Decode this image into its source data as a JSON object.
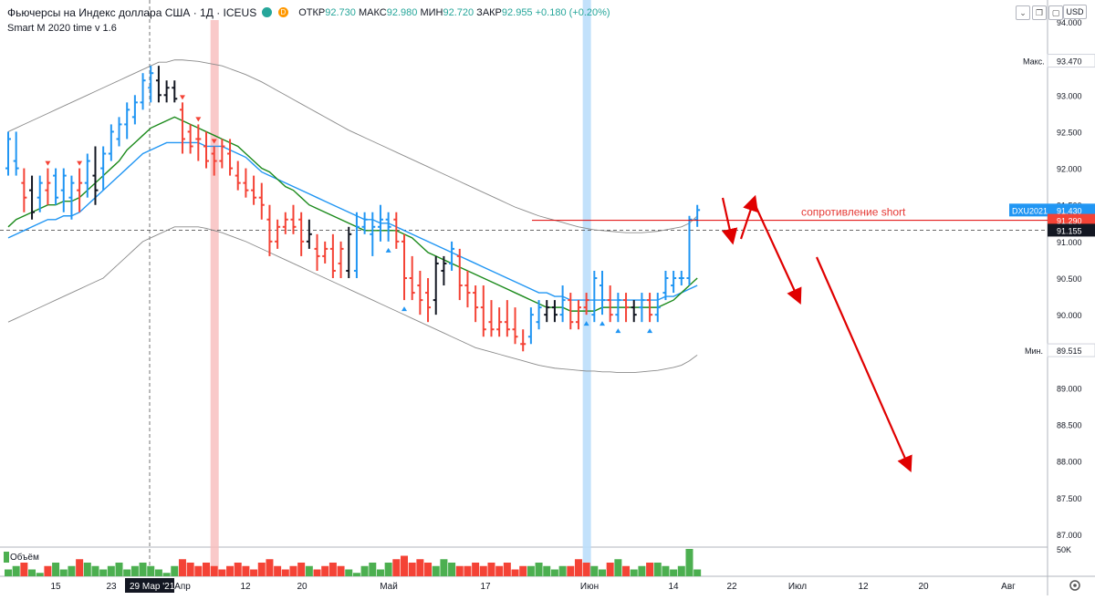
{
  "header": {
    "title": "Фьючерсы на Индекс доллара США · 1Д · ICEUS",
    "open_label": "ОТКР",
    "open": "92.730",
    "high_label": "МАКС",
    "high": "92.980",
    "low_label": "МИН",
    "low": "92.720",
    "close_label": "ЗАКР",
    "close": "92.955",
    "change": "+0.180 (+0.20%)",
    "indicator": "Smart M 2020 time v 1.6",
    "currency": "USD",
    "badge_d": "D"
  },
  "price_axis": {
    "ticks": [
      "94.000",
      "93.500",
      "93.000",
      "92.500",
      "92.000",
      "91.500",
      "91.000",
      "90.500",
      "90.000",
      "89.500",
      "89.000",
      "88.500",
      "88.000",
      "87.500",
      "87.000"
    ],
    "tick_values": [
      94.0,
      93.5,
      93.0,
      92.5,
      92.0,
      91.5,
      91.0,
      90.5,
      90.0,
      89.5,
      89.0,
      88.5,
      88.0,
      87.5,
      87.0
    ],
    "max_label": "Макс.",
    "max_value": "93.470",
    "min_label": "Мин.",
    "min_value": "89.515",
    "symbol_label": "DXU2021",
    "symbol_value": "91.430",
    "resistance_value": "91.290",
    "last_value": "91.155"
  },
  "time_axis": {
    "labels": [
      "15",
      "23",
      "29 Мар '21",
      "Апр",
      "12",
      "20",
      "Май",
      "17",
      "Июн",
      "14",
      "22",
      "Июл",
      "12",
      "20",
      "Авг"
    ],
    "cursor_label": "29 Мар '21"
  },
  "volume": {
    "label": "Объём",
    "axis_label": "50K"
  },
  "annotations": {
    "resistance_text": "сопротивление short"
  },
  "colors": {
    "up": "#2196f3",
    "down": "#f44336",
    "neutral": "#131722",
    "ema_green": "#1b8a1b",
    "ema_blue": "#2196f3",
    "band": "#8a8a8a",
    "vol_up": "#4caf50",
    "vol_down": "#f44336",
    "arrow": "#e00000"
  },
  "chart_data": {
    "type": "ohlc",
    "symbol": "DXU2021",
    "timeframe": "1D",
    "ylim": [
      86.8,
      94.2
    ],
    "bars": [
      [
        92.0,
        92.5,
        91.9,
        92.4,
        "up"
      ],
      [
        92.1,
        92.5,
        91.9,
        92.0,
        "up"
      ],
      [
        91.8,
        92.0,
        91.4,
        91.6,
        "down"
      ],
      [
        91.7,
        91.9,
        91.3,
        91.4,
        "neutral"
      ],
      [
        91.6,
        91.9,
        91.4,
        91.8,
        "up"
      ],
      [
        91.7,
        92.0,
        91.5,
        91.8,
        "down"
      ],
      [
        91.9,
        92.0,
        91.5,
        91.6,
        "up"
      ],
      [
        91.7,
        92.0,
        91.4,
        91.9,
        "up"
      ],
      [
        91.6,
        91.9,
        91.3,
        91.8,
        "up"
      ],
      [
        91.7,
        92.0,
        91.4,
        91.8,
        "down"
      ],
      [
        91.8,
        92.2,
        91.6,
        92.1,
        "up"
      ],
      [
        91.9,
        92.3,
        91.5,
        91.7,
        "neutral"
      ],
      [
        92.0,
        92.3,
        91.7,
        92.2,
        "up"
      ],
      [
        92.2,
        92.6,
        92.1,
        92.5,
        "up"
      ],
      [
        92.4,
        92.7,
        92.3,
        92.6,
        "up"
      ],
      [
        92.6,
        92.9,
        92.4,
        92.8,
        "up"
      ],
      [
        92.7,
        93.0,
        92.6,
        92.9,
        "up"
      ],
      [
        92.9,
        93.3,
        92.8,
        93.2,
        "up"
      ],
      [
        93.1,
        93.4,
        92.9,
        93.3,
        "up"
      ],
      [
        93.2,
        93.4,
        92.9,
        93.0,
        "neutral"
      ],
      [
        93.0,
        93.2,
        92.9,
        93.1,
        "neutral"
      ],
      [
        93.1,
        93.2,
        92.9,
        92.95,
        "neutral"
      ],
      [
        92.8,
        92.9,
        92.2,
        92.4,
        "down"
      ],
      [
        92.5,
        92.6,
        92.2,
        92.3,
        "down"
      ],
      [
        92.4,
        92.6,
        92.1,
        92.4,
        "down"
      ],
      [
        92.3,
        92.5,
        92.0,
        92.1,
        "down"
      ],
      [
        92.2,
        92.3,
        91.9,
        92.1,
        "down"
      ],
      [
        92.1,
        92.4,
        92.0,
        92.3,
        "down"
      ],
      [
        92.2,
        92.4,
        91.9,
        92.0,
        "down"
      ],
      [
        91.9,
        92.1,
        91.7,
        91.8,
        "down"
      ],
      [
        91.8,
        92.0,
        91.6,
        91.7,
        "down"
      ],
      [
        91.7,
        91.9,
        91.5,
        91.6,
        "down"
      ],
      [
        91.6,
        91.8,
        91.3,
        91.5,
        "down"
      ],
      [
        91.3,
        91.5,
        90.8,
        91.0,
        "down"
      ],
      [
        91.0,
        91.3,
        90.9,
        91.2,
        "down"
      ],
      [
        91.2,
        91.4,
        91.1,
        91.3,
        "down"
      ],
      [
        91.3,
        91.5,
        91.1,
        91.2,
        "down"
      ],
      [
        91.3,
        91.4,
        90.8,
        91.0,
        "down"
      ],
      [
        91.0,
        91.3,
        90.9,
        91.1,
        "neutral"
      ],
      [
        90.9,
        91.1,
        90.6,
        90.8,
        "down"
      ],
      [
        90.8,
        91.0,
        90.7,
        90.9,
        "down"
      ],
      [
        90.9,
        91.1,
        90.5,
        90.6,
        "down"
      ],
      [
        90.7,
        91.0,
        90.5,
        90.9,
        "down"
      ],
      [
        90.6,
        91.2,
        90.5,
        91.1,
        "neutral"
      ],
      [
        90.6,
        91.4,
        90.5,
        91.2,
        "up"
      ],
      [
        91.2,
        91.4,
        91.1,
        91.3,
        "up"
      ],
      [
        91.1,
        91.4,
        90.8,
        91.2,
        "up"
      ],
      [
        91.2,
        91.5,
        91.0,
        91.3,
        "up"
      ],
      [
        91.3,
        91.4,
        91.0,
        91.2,
        "up"
      ],
      [
        91.3,
        91.4,
        90.9,
        91.0,
        "down"
      ],
      [
        91.0,
        91.1,
        90.2,
        90.5,
        "down"
      ],
      [
        90.5,
        90.8,
        90.2,
        90.3,
        "down"
      ],
      [
        90.4,
        90.6,
        90.0,
        90.2,
        "down"
      ],
      [
        90.3,
        90.5,
        89.9,
        90.1,
        "down"
      ],
      [
        90.2,
        90.8,
        90.0,
        90.7,
        "neutral"
      ],
      [
        90.6,
        90.8,
        90.4,
        90.7,
        "neutral"
      ],
      [
        90.7,
        91.0,
        90.6,
        90.9,
        "up"
      ],
      [
        90.8,
        90.9,
        90.2,
        90.4,
        "down"
      ],
      [
        90.4,
        90.6,
        90.1,
        90.3,
        "down"
      ],
      [
        90.3,
        90.4,
        89.9,
        90.1,
        "down"
      ],
      [
        90.1,
        90.4,
        89.7,
        89.8,
        "down"
      ],
      [
        89.9,
        90.2,
        89.7,
        89.8,
        "down"
      ],
      [
        89.8,
        90.1,
        89.7,
        89.9,
        "down"
      ],
      [
        89.9,
        90.2,
        89.7,
        89.8,
        "down"
      ],
      [
        89.8,
        90.1,
        89.6,
        89.7,
        "down"
      ],
      [
        89.6,
        89.8,
        89.5,
        89.6,
        "down"
      ],
      [
        89.7,
        90.1,
        89.6,
        90.0,
        "up"
      ],
      [
        89.9,
        90.2,
        89.8,
        90.1,
        "up"
      ],
      [
        90.0,
        90.2,
        89.9,
        90.1,
        "neutral"
      ],
      [
        90.1,
        90.2,
        89.9,
        90.0,
        "neutral"
      ],
      [
        90.0,
        90.4,
        89.9,
        90.2,
        "up"
      ],
      [
        90.2,
        90.3,
        89.8,
        89.9,
        "down"
      ],
      [
        89.9,
        90.2,
        89.8,
        90.1,
        "down"
      ],
      [
        90.1,
        90.3,
        90.0,
        90.2,
        "down"
      ],
      [
        90.0,
        90.6,
        89.9,
        90.5,
        "up"
      ],
      [
        90.4,
        90.6,
        90.0,
        90.2,
        "up"
      ],
      [
        90.2,
        90.4,
        89.9,
        90.0,
        "down"
      ],
      [
        90.0,
        90.3,
        89.9,
        90.2,
        "up"
      ],
      [
        90.2,
        90.3,
        89.9,
        90.1,
        "down"
      ],
      [
        90.1,
        90.2,
        89.9,
        90.0,
        "neutral"
      ],
      [
        90.1,
        90.3,
        89.9,
        90.2,
        "up"
      ],
      [
        90.2,
        90.3,
        89.9,
        90.0,
        "down"
      ],
      [
        90.0,
        90.3,
        89.9,
        90.1,
        "up"
      ],
      [
        90.3,
        90.6,
        90.2,
        90.5,
        "up"
      ],
      [
        90.4,
        90.6,
        90.3,
        90.5,
        "up"
      ],
      [
        90.5,
        90.6,
        90.4,
        90.5,
        "up"
      ],
      [
        90.5,
        91.35,
        90.4,
        91.3,
        "up"
      ],
      [
        91.3,
        91.5,
        91.2,
        91.43,
        "up"
      ]
    ],
    "ema_green": [
      91.2,
      91.3,
      91.35,
      91.4,
      91.45,
      91.5,
      91.5,
      91.55,
      91.55,
      91.6,
      91.7,
      91.8,
      91.9,
      92.0,
      92.1,
      92.25,
      92.35,
      92.45,
      92.55,
      92.6,
      92.65,
      92.7,
      92.65,
      92.6,
      92.55,
      92.5,
      92.45,
      92.4,
      92.35,
      92.3,
      92.2,
      92.1,
      92.0,
      91.95,
      91.85,
      91.75,
      91.7,
      91.6,
      91.5,
      91.45,
      91.4,
      91.35,
      91.3,
      91.25,
      91.2,
      91.15,
      91.15,
      91.15,
      91.15,
      91.15,
      91.1,
      91.05,
      90.95,
      90.85,
      90.8,
      90.75,
      90.7,
      90.65,
      90.6,
      90.55,
      90.5,
      90.45,
      90.4,
      90.35,
      90.3,
      90.25,
      90.2,
      90.15,
      90.1,
      90.1,
      90.1,
      90.05,
      90.05,
      90.05,
      90.05,
      90.1,
      90.1,
      90.1,
      90.1,
      90.1,
      90.1,
      90.1,
      90.1,
      90.15,
      90.2,
      90.3,
      90.4,
      90.5
    ],
    "ema_blue": [
      91.05,
      91.1,
      91.15,
      91.2,
      91.25,
      91.3,
      91.3,
      91.35,
      91.35,
      91.4,
      91.5,
      91.6,
      91.7,
      91.8,
      91.9,
      92.0,
      92.1,
      92.2,
      92.25,
      92.3,
      92.35,
      92.35,
      92.35,
      92.35,
      92.35,
      92.3,
      92.3,
      92.3,
      92.25,
      92.2,
      92.15,
      92.05,
      91.95,
      91.9,
      91.85,
      91.8,
      91.75,
      91.7,
      91.65,
      91.6,
      91.55,
      91.5,
      91.45,
      91.4,
      91.35,
      91.3,
      91.3,
      91.25,
      91.25,
      91.2,
      91.15,
      91.1,
      91.05,
      91.0,
      90.95,
      90.9,
      90.85,
      90.8,
      90.75,
      90.7,
      90.65,
      90.6,
      90.55,
      90.5,
      90.45,
      90.4,
      90.35,
      90.3,
      90.3,
      90.25,
      90.25,
      90.2,
      90.2,
      90.2,
      90.2,
      90.2,
      90.2,
      90.2,
      90.2,
      90.2,
      90.2,
      90.2,
      90.2,
      90.25,
      90.25,
      90.3,
      90.35,
      90.4
    ],
    "band_upper": [
      92.5,
      92.55,
      92.6,
      92.65,
      92.7,
      92.75,
      92.8,
      92.85,
      92.9,
      92.95,
      93.0,
      93.05,
      93.1,
      93.15,
      93.2,
      93.25,
      93.3,
      93.35,
      93.4,
      93.45,
      93.45,
      93.48,
      93.48,
      93.47,
      93.46,
      93.44,
      93.42,
      93.4,
      93.36,
      93.32,
      93.28,
      93.23,
      93.18,
      93.12,
      93.06,
      93.0,
      92.94,
      92.88,
      92.82,
      92.76,
      92.7,
      92.64,
      92.58,
      92.52,
      92.47,
      92.42,
      92.37,
      92.32,
      92.27,
      92.22,
      92.17,
      92.12,
      92.07,
      92.02,
      91.97,
      91.92,
      91.87,
      91.82,
      91.77,
      91.72,
      91.67,
      91.62,
      91.57,
      91.52,
      91.47,
      91.43,
      91.39,
      91.35,
      91.32,
      91.29,
      91.26,
      91.23,
      91.2,
      91.18,
      91.16,
      91.15,
      91.14,
      91.13,
      91.12,
      91.12,
      91.12,
      91.13,
      91.14,
      91.16,
      91.18,
      91.2,
      91.25,
      91.35
    ],
    "band_lower": [
      89.9,
      89.95,
      90.0,
      90.05,
      90.1,
      90.15,
      90.2,
      90.25,
      90.3,
      90.35,
      90.4,
      90.45,
      90.5,
      90.6,
      90.7,
      90.8,
      90.9,
      91.0,
      91.05,
      91.1,
      91.15,
      91.2,
      91.2,
      91.2,
      91.2,
      91.18,
      91.15,
      91.12,
      91.08,
      91.04,
      91.0,
      90.95,
      90.9,
      90.85,
      90.8,
      90.75,
      90.7,
      90.65,
      90.6,
      90.55,
      90.5,
      90.45,
      90.4,
      90.35,
      90.3,
      90.25,
      90.2,
      90.15,
      90.1,
      90.05,
      90.0,
      89.95,
      89.9,
      89.85,
      89.8,
      89.75,
      89.7,
      89.65,
      89.6,
      89.55,
      89.52,
      89.49,
      89.46,
      89.43,
      89.4,
      89.37,
      89.34,
      89.31,
      89.29,
      89.27,
      89.26,
      89.25,
      89.24,
      89.23,
      89.23,
      89.22,
      89.22,
      89.21,
      89.21,
      89.21,
      89.22,
      89.23,
      89.24,
      89.26,
      89.28,
      89.31,
      89.37,
      89.45
    ],
    "volume": [
      2,
      3,
      4,
      2,
      1,
      3,
      4,
      2,
      3,
      5,
      4,
      3,
      2,
      3,
      4,
      2,
      3,
      4,
      3,
      2,
      1,
      3,
      5,
      4,
      3,
      4,
      3,
      2,
      3,
      4,
      3,
      2,
      4,
      5,
      3,
      2,
      3,
      4,
      3,
      2,
      3,
      4,
      3,
      2,
      1,
      3,
      4,
      2,
      4,
      5,
      6,
      4,
      5,
      4,
      3,
      5,
      4,
      3,
      3,
      4,
      3,
      4,
      3,
      4,
      2,
      3,
      3,
      4,
      3,
      2,
      3,
      3,
      5,
      4,
      3,
      2,
      4,
      5,
      3,
      2,
      3,
      4,
      4,
      3,
      2,
      3,
      8,
      2
    ],
    "signals_down_idx": [
      5,
      9,
      22,
      24,
      26
    ],
    "signals_up_idx": [
      48,
      50,
      73,
      75,
      77,
      81
    ],
    "highlight_red_idx": 26,
    "highlight_blue_idx": 73
  }
}
